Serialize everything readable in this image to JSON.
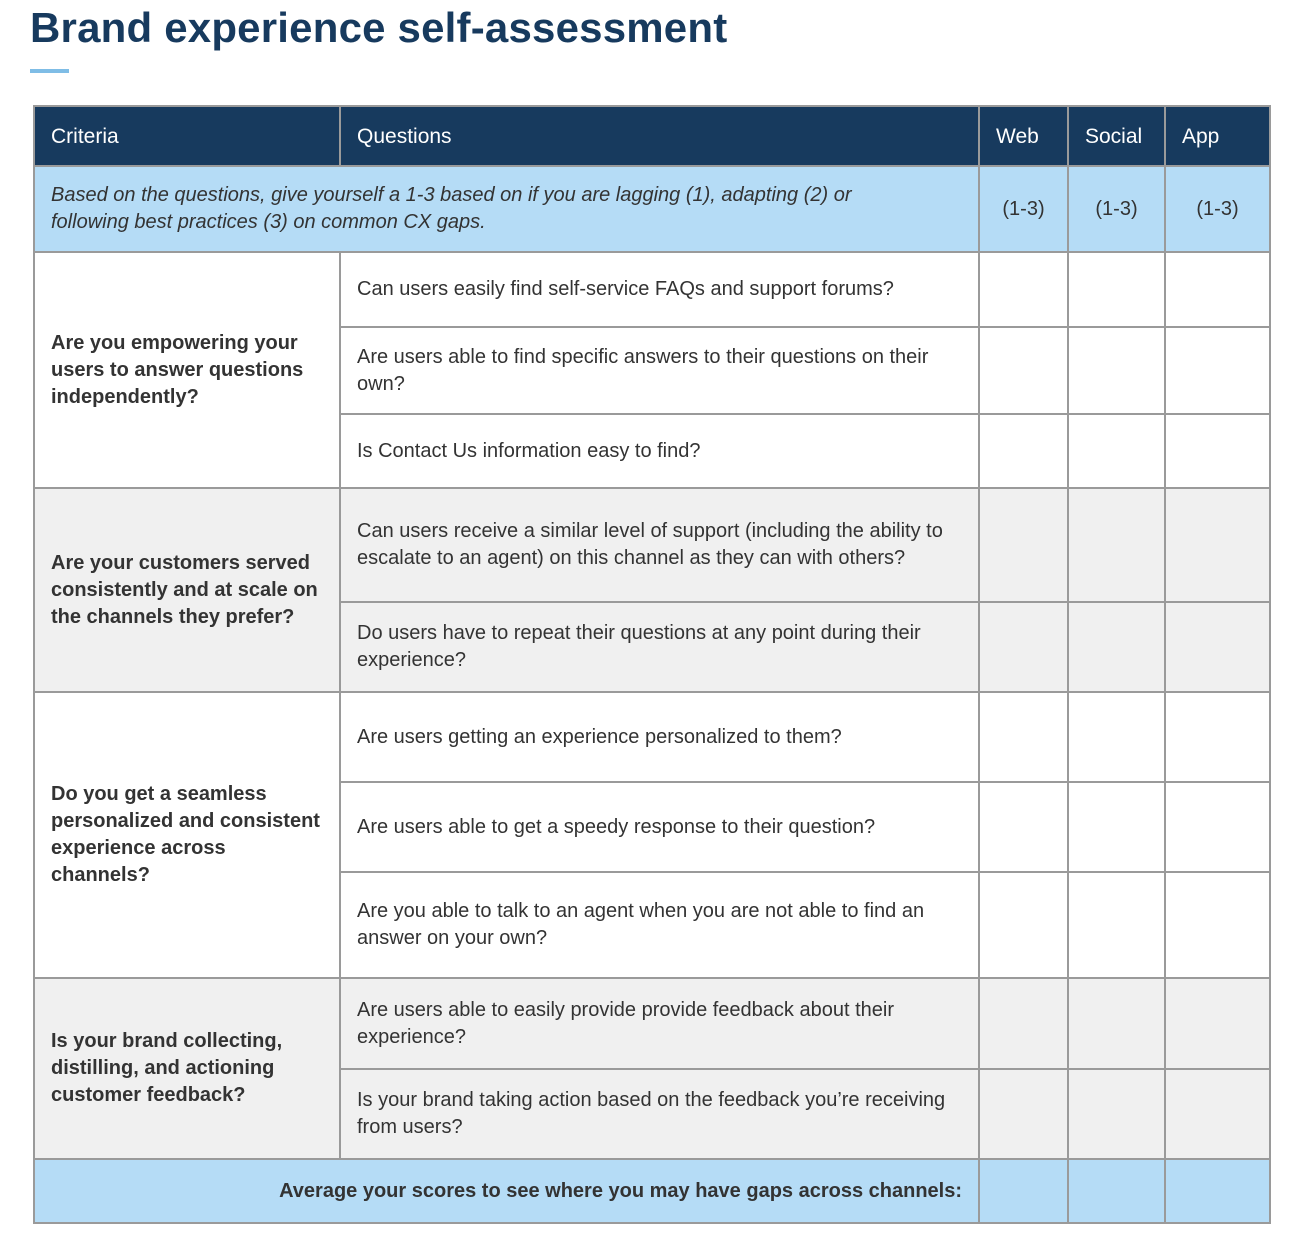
{
  "title": "Brand experience self-assessment",
  "table": {
    "header": [
      "Criteria",
      "Questions",
      "Web",
      "Social",
      "App"
    ],
    "instruction": {
      "text": "Based on the questions, give yourself a 1-3 based on if you are lagging (1), adapting (2) or following best practices (3) on common CX gaps.",
      "scales": [
        "(1-3)",
        "(1-3)",
        "(1-3)"
      ]
    },
    "groups": [
      {
        "criteria": "Are you empowering your users to answer questions independently?",
        "questions": [
          "Can users easily find self-service FAQs and support forums?",
          "Are users able to find specific answers to their questions on their own?",
          "Is Contact Us information easy to find?"
        ]
      },
      {
        "criteria": "Are your customers served consistently and at scale on the channels they prefer?",
        "questions": [
          "Can users receive a similar level of support (including the ability to escalate to an agent) on this channel as they can with others?",
          "Do users have to repeat their questions at any point during their experience?"
        ]
      },
      {
        "criteria": "Do you get a seamless personalized and consistent experience across channels?",
        "questions": [
          "Are users getting an experience personalized to them?",
          "Are users able to get a speedy response to their question?",
          "Are you able to talk to an agent when you are not able to find an answer on your own?"
        ]
      },
      {
        "criteria": "Is your brand collecting, distilling, and actioning customer feedback?",
        "questions": [
          "Are users able to easily provide provide feedback about their experience?",
          "Is your brand taking action based on the feedback you’re receiving from users?"
        ]
      }
    ],
    "footer": "Average your scores to see where you may have gaps across channels:"
  }
}
